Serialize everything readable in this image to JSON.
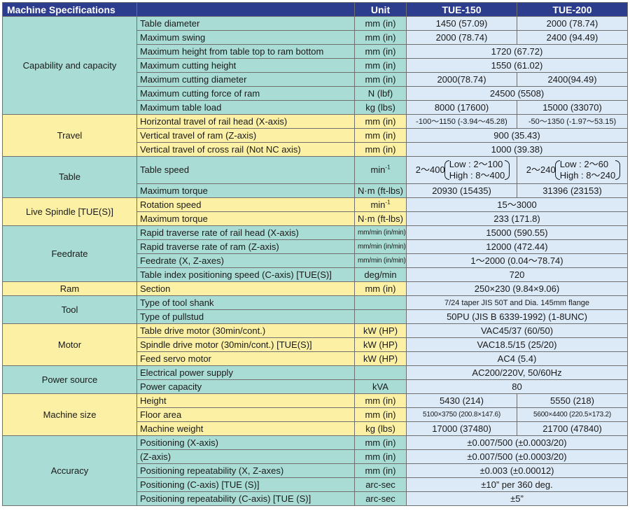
{
  "header": {
    "title": "Machine Specifications",
    "unit": "Unit",
    "model_a": "TUE-150",
    "model_b": "TUE-200"
  },
  "cap": {
    "category": "Capability and capacity",
    "rows": [
      {
        "item": "Table diameter",
        "unit": "mm (in)",
        "a": "1450 (57.09)",
        "b": "2000 (78.74)"
      },
      {
        "item": "Maximum swing",
        "unit": "mm (in)",
        "a": "2000 (78.74)",
        "b": "2400 (94.49)"
      },
      {
        "item": "Maximum height from table top to ram bottom",
        "unit": "mm (in)",
        "v": "1720 (67.72)"
      },
      {
        "item": "Maximum cutting height",
        "unit": "mm (in)",
        "v": "1550 (61.02)"
      },
      {
        "item": "Maximum cutting diameter",
        "unit": "mm (in)",
        "a": "2000(78.74)",
        "b": "2400(94.49)"
      },
      {
        "item": "Maximum cutting force of ram",
        "unit": "N (lbf)",
        "v": "24500 (5508)"
      },
      {
        "item": "Maximum table load",
        "unit": "kg (lbs)",
        "a": "8000 (17600)",
        "b": "15000 (33070)"
      }
    ]
  },
  "travel": {
    "category": "Travel",
    "rows": [
      {
        "item": "Horizontal travel of rail head  (X-axis)",
        "unit": "mm (in)",
        "a": "-100～1150 (-3.94～45.28)",
        "b": "-50～1350 (-1.97～53.15)"
      },
      {
        "item": "Vertical travel of ram (Z-axis)",
        "unit": "mm (in)",
        "v": "900 (35.43)"
      },
      {
        "item": "Vertical travel of cross rail (Not NC axis)",
        "unit": "mm (in)",
        "v": "1000 (39.38)"
      }
    ]
  },
  "table": {
    "category": "Table",
    "speed_item": "Table speed",
    "speed_unit_base": "min",
    "speed_unit_exp": "-1",
    "speed_a": {
      "range": "2～400",
      "low": "Low : 2～100",
      "high": "High : 8～400"
    },
    "speed_b": {
      "range": "2～240",
      "low": "Low : 2～60",
      "high": "High : 8～240"
    },
    "torque": {
      "item": "Maximum torque",
      "unit": "N·m (ft-lbs)",
      "a": "20930 (15435)",
      "b": "31396 (23153)"
    }
  },
  "spindle": {
    "category": "Live Spindle [TUE(S)]",
    "rotation_item": "Rotation speed",
    "rotation_unit_base": "min",
    "rotation_unit_exp": "-1",
    "rotation_value": "15～3000",
    "torque": {
      "item": "Maximum torque",
      "unit": "N·m (ft-lbs)",
      "v": "233 (171.8)"
    }
  },
  "feed": {
    "category": "Feedrate",
    "rows": [
      {
        "item": "Rapid traverse rate of rail head (X-axis)",
        "unit": "mm/min (in/min)",
        "v": "15000 (590.55)"
      },
      {
        "item": "Rapid traverse rate of ram (Z-axis)",
        "unit": "mm/min (in/min)",
        "v": "12000 (472.44)"
      },
      {
        "item": "Feedrate (X, Z-axes)",
        "unit": "mm/min (in/min)",
        "v": "1～2000 (0.04～78.74)"
      },
      {
        "item": "Table index positioning speed (C-axis) [TUE(S)]",
        "unit": "deg/min",
        "v": "720"
      }
    ]
  },
  "ram": {
    "category": "Ram",
    "item": "Section",
    "unit": "mm (in)",
    "v": "250×230 (9.84×9.06)"
  },
  "tool": {
    "category": "Tool",
    "rows": [
      {
        "item": "Type of tool shank",
        "unit": "",
        "v": "7/24 taper JIS 50T and Dia. 145mm flange"
      },
      {
        "item": "Type of pullstud",
        "unit": "",
        "v": "50PU (JIS B 6339-1992) (1-8UNC)"
      }
    ]
  },
  "motor": {
    "category": "Motor",
    "rows": [
      {
        "item": "Table drive motor (30min/cont.)",
        "unit": "kW (HP)",
        "v": "VAC45/37 (60/50)"
      },
      {
        "item": "Spindle drive motor (30min/cont.) [TUE(S)]",
        "unit": "kW (HP)",
        "v": "VAC18.5/15 (25/20)"
      },
      {
        "item": "Feed servo motor",
        "unit": "kW (HP)",
        "v": "AC4 (5.4)"
      }
    ]
  },
  "power": {
    "category": "Power source",
    "rows": [
      {
        "item": "Electrical power supply",
        "unit": "",
        "v": "AC200/220V, 50/60Hz"
      },
      {
        "item": "Power capacity",
        "unit": "kVA",
        "v": "80"
      }
    ]
  },
  "size": {
    "category": "Machine size",
    "rows": [
      {
        "item": "Height",
        "unit": "mm (in)",
        "a": "5430 (214)",
        "b": "5550 (218)"
      },
      {
        "item": "Floor area",
        "unit": "mm (in)",
        "a": "5100×3750 (200.8×147.6)",
        "b": "5600×4400 (220.5×173.2)"
      },
      {
        "item": "Machine weight",
        "unit": "kg (lbs)",
        "a": "17000 (37480)",
        "b": "21700 (47840)"
      }
    ]
  },
  "acc": {
    "category": "Accuracy",
    "rows": [
      {
        "item": "Positioning (X-axis)",
        "unit": "mm (in)",
        "v": "±0.007/500 (±0.0003/20)"
      },
      {
        "item": "(Z-axis)",
        "unit": "mm (in)",
        "v": "±0.007/500 (±0.0003/20)"
      },
      {
        "item": "Positioning repeatability (X, Z-axes)",
        "unit": "mm (in)",
        "v": "±0.003 (±0.00012)"
      },
      {
        "item": "Positioning (C-axis) [TUE (S)]",
        "unit": "arc-sec",
        "v": "±10” per 360 deg."
      },
      {
        "item": "Positioning repeatability (C-axis) [TUE (S)]",
        "unit": "arc-sec",
        "v": "±5”"
      }
    ]
  }
}
